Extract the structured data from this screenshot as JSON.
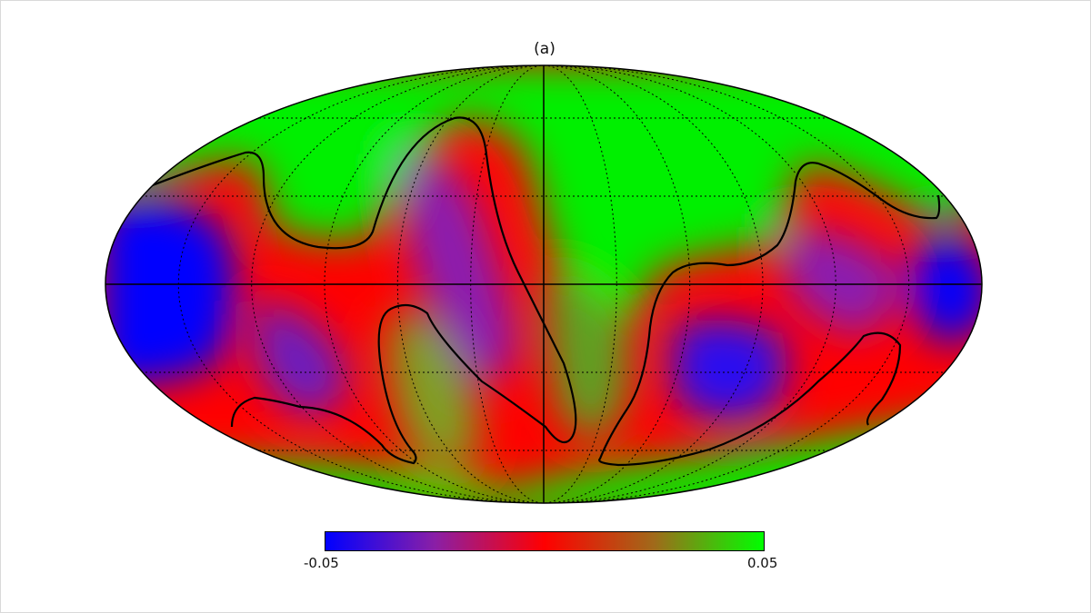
{
  "title": "(a)",
  "projection": "mollweide",
  "colorbar": {
    "min_label": "-0.05",
    "max_label": "0.05",
    "range": [
      -0.05,
      0.05
    ],
    "colors": [
      "#0000ff",
      "#8a1fa6",
      "#ff0000",
      "#a06a1a",
      "#00ff00"
    ]
  },
  "graticule": {
    "meridians_step_deg": 30,
    "parallels_step_deg": 30,
    "style": "dotted"
  },
  "contour": {
    "level": 0,
    "color": "#000000"
  }
}
